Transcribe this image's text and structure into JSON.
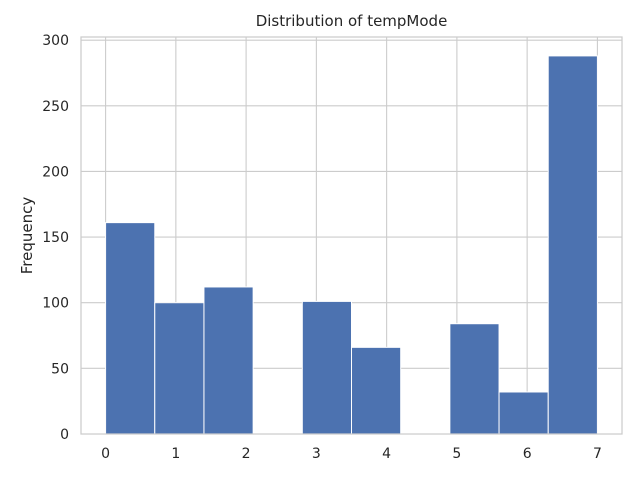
{
  "chart_data": {
    "type": "bar",
    "title": "Distribution of tempMode",
    "xlabel": "",
    "ylabel": "Frequency",
    "bins": [
      {
        "start": 0.0,
        "end": 0.7,
        "count": 161
      },
      {
        "start": 0.7,
        "end": 1.4,
        "count": 100
      },
      {
        "start": 1.4,
        "end": 2.1,
        "count": 112
      },
      {
        "start": 2.1,
        "end": 2.8,
        "count": 0
      },
      {
        "start": 2.8,
        "end": 3.5,
        "count": 101
      },
      {
        "start": 3.5,
        "end": 4.2,
        "count": 66
      },
      {
        "start": 4.2,
        "end": 4.9,
        "count": 0
      },
      {
        "start": 4.9,
        "end": 5.6,
        "count": 84
      },
      {
        "start": 5.6,
        "end": 6.3,
        "count": 32
      },
      {
        "start": 6.3,
        "end": 7.0,
        "count": 288
      }
    ],
    "xticks": [
      "0",
      "1",
      "2",
      "3",
      "4",
      "5",
      "6",
      "7"
    ],
    "yticks": [
      "0",
      "50",
      "100",
      "150",
      "200",
      "250",
      "300"
    ],
    "xlim": [
      -0.35,
      7.35
    ],
    "ylim": [
      0,
      302.4
    ],
    "grid": true,
    "colors": {
      "bar": "#4c72b0",
      "bar_edge": "#ffffff",
      "grid": "#cccccc",
      "spine": "#cccccc",
      "background": "#ffffff"
    }
  }
}
